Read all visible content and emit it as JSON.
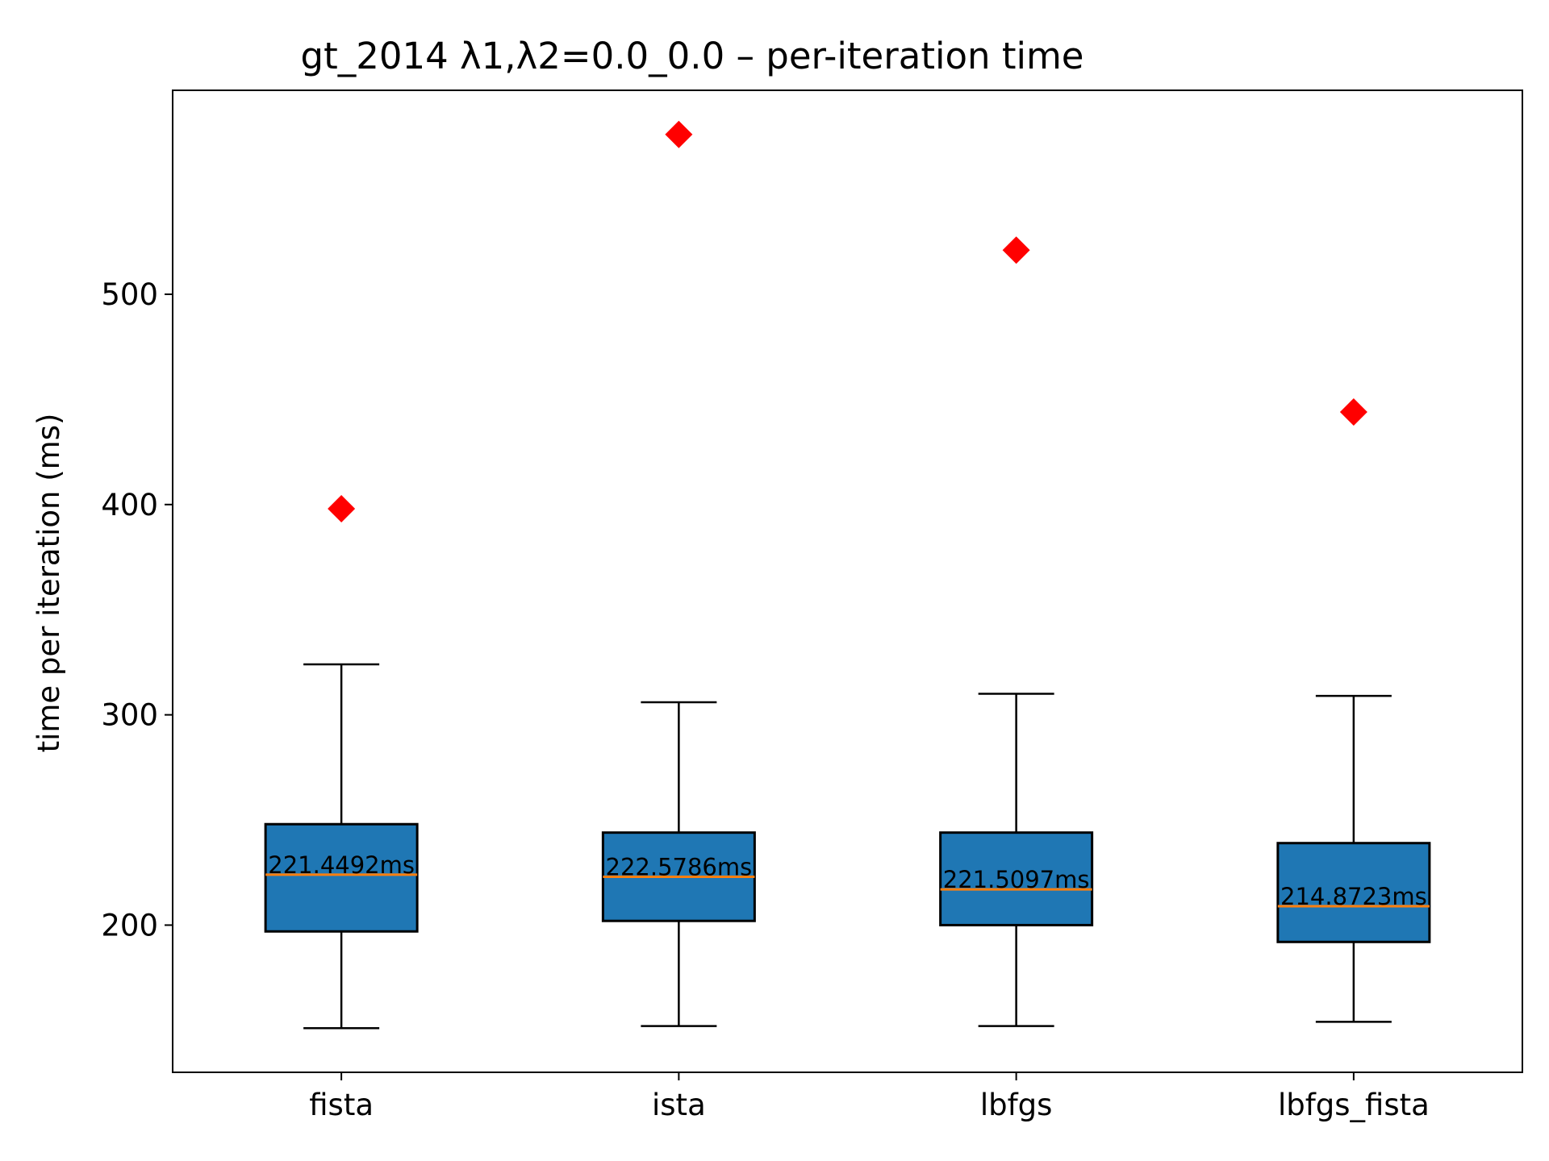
{
  "chart_data": {
    "type": "box",
    "title": "gt_2014   λ1,λ2=0.0_0.0  –  per-iteration time",
    "xlabel": "",
    "ylabel": "time per iteration (ms)",
    "ylim": [
      130,
      597
    ],
    "yticks": [
      200,
      300,
      400,
      500
    ],
    "grid": false,
    "colors": {
      "box_fill": "#1f77b4",
      "median": "#ff7f0e",
      "outlier": "#ff0000",
      "line": "#000000"
    },
    "categories": [
      "fista",
      "ista",
      "lbfgs",
      "lbfgs_fista"
    ],
    "boxes": [
      {
        "name": "fista",
        "whisker_low": 151,
        "q1": 197,
        "median": 224,
        "q3": 248,
        "whisker_high": 324,
        "outliers": [
          398
        ],
        "label": "221.4492ms"
      },
      {
        "name": "ista",
        "whisker_low": 152,
        "q1": 202,
        "median": 223,
        "q3": 244,
        "whisker_high": 306,
        "outliers": [
          576
        ],
        "label": "222.5786ms"
      },
      {
        "name": "lbfgs",
        "whisker_low": 152,
        "q1": 200,
        "median": 217,
        "q3": 244,
        "whisker_high": 310,
        "outliers": [
          521
        ],
        "label": "221.5097ms"
      },
      {
        "name": "lbfgs_fista",
        "whisker_low": 154,
        "q1": 192,
        "median": 209,
        "q3": 239,
        "whisker_high": 309,
        "outliers": [
          444
        ],
        "label": "214.8723ms"
      }
    ]
  }
}
